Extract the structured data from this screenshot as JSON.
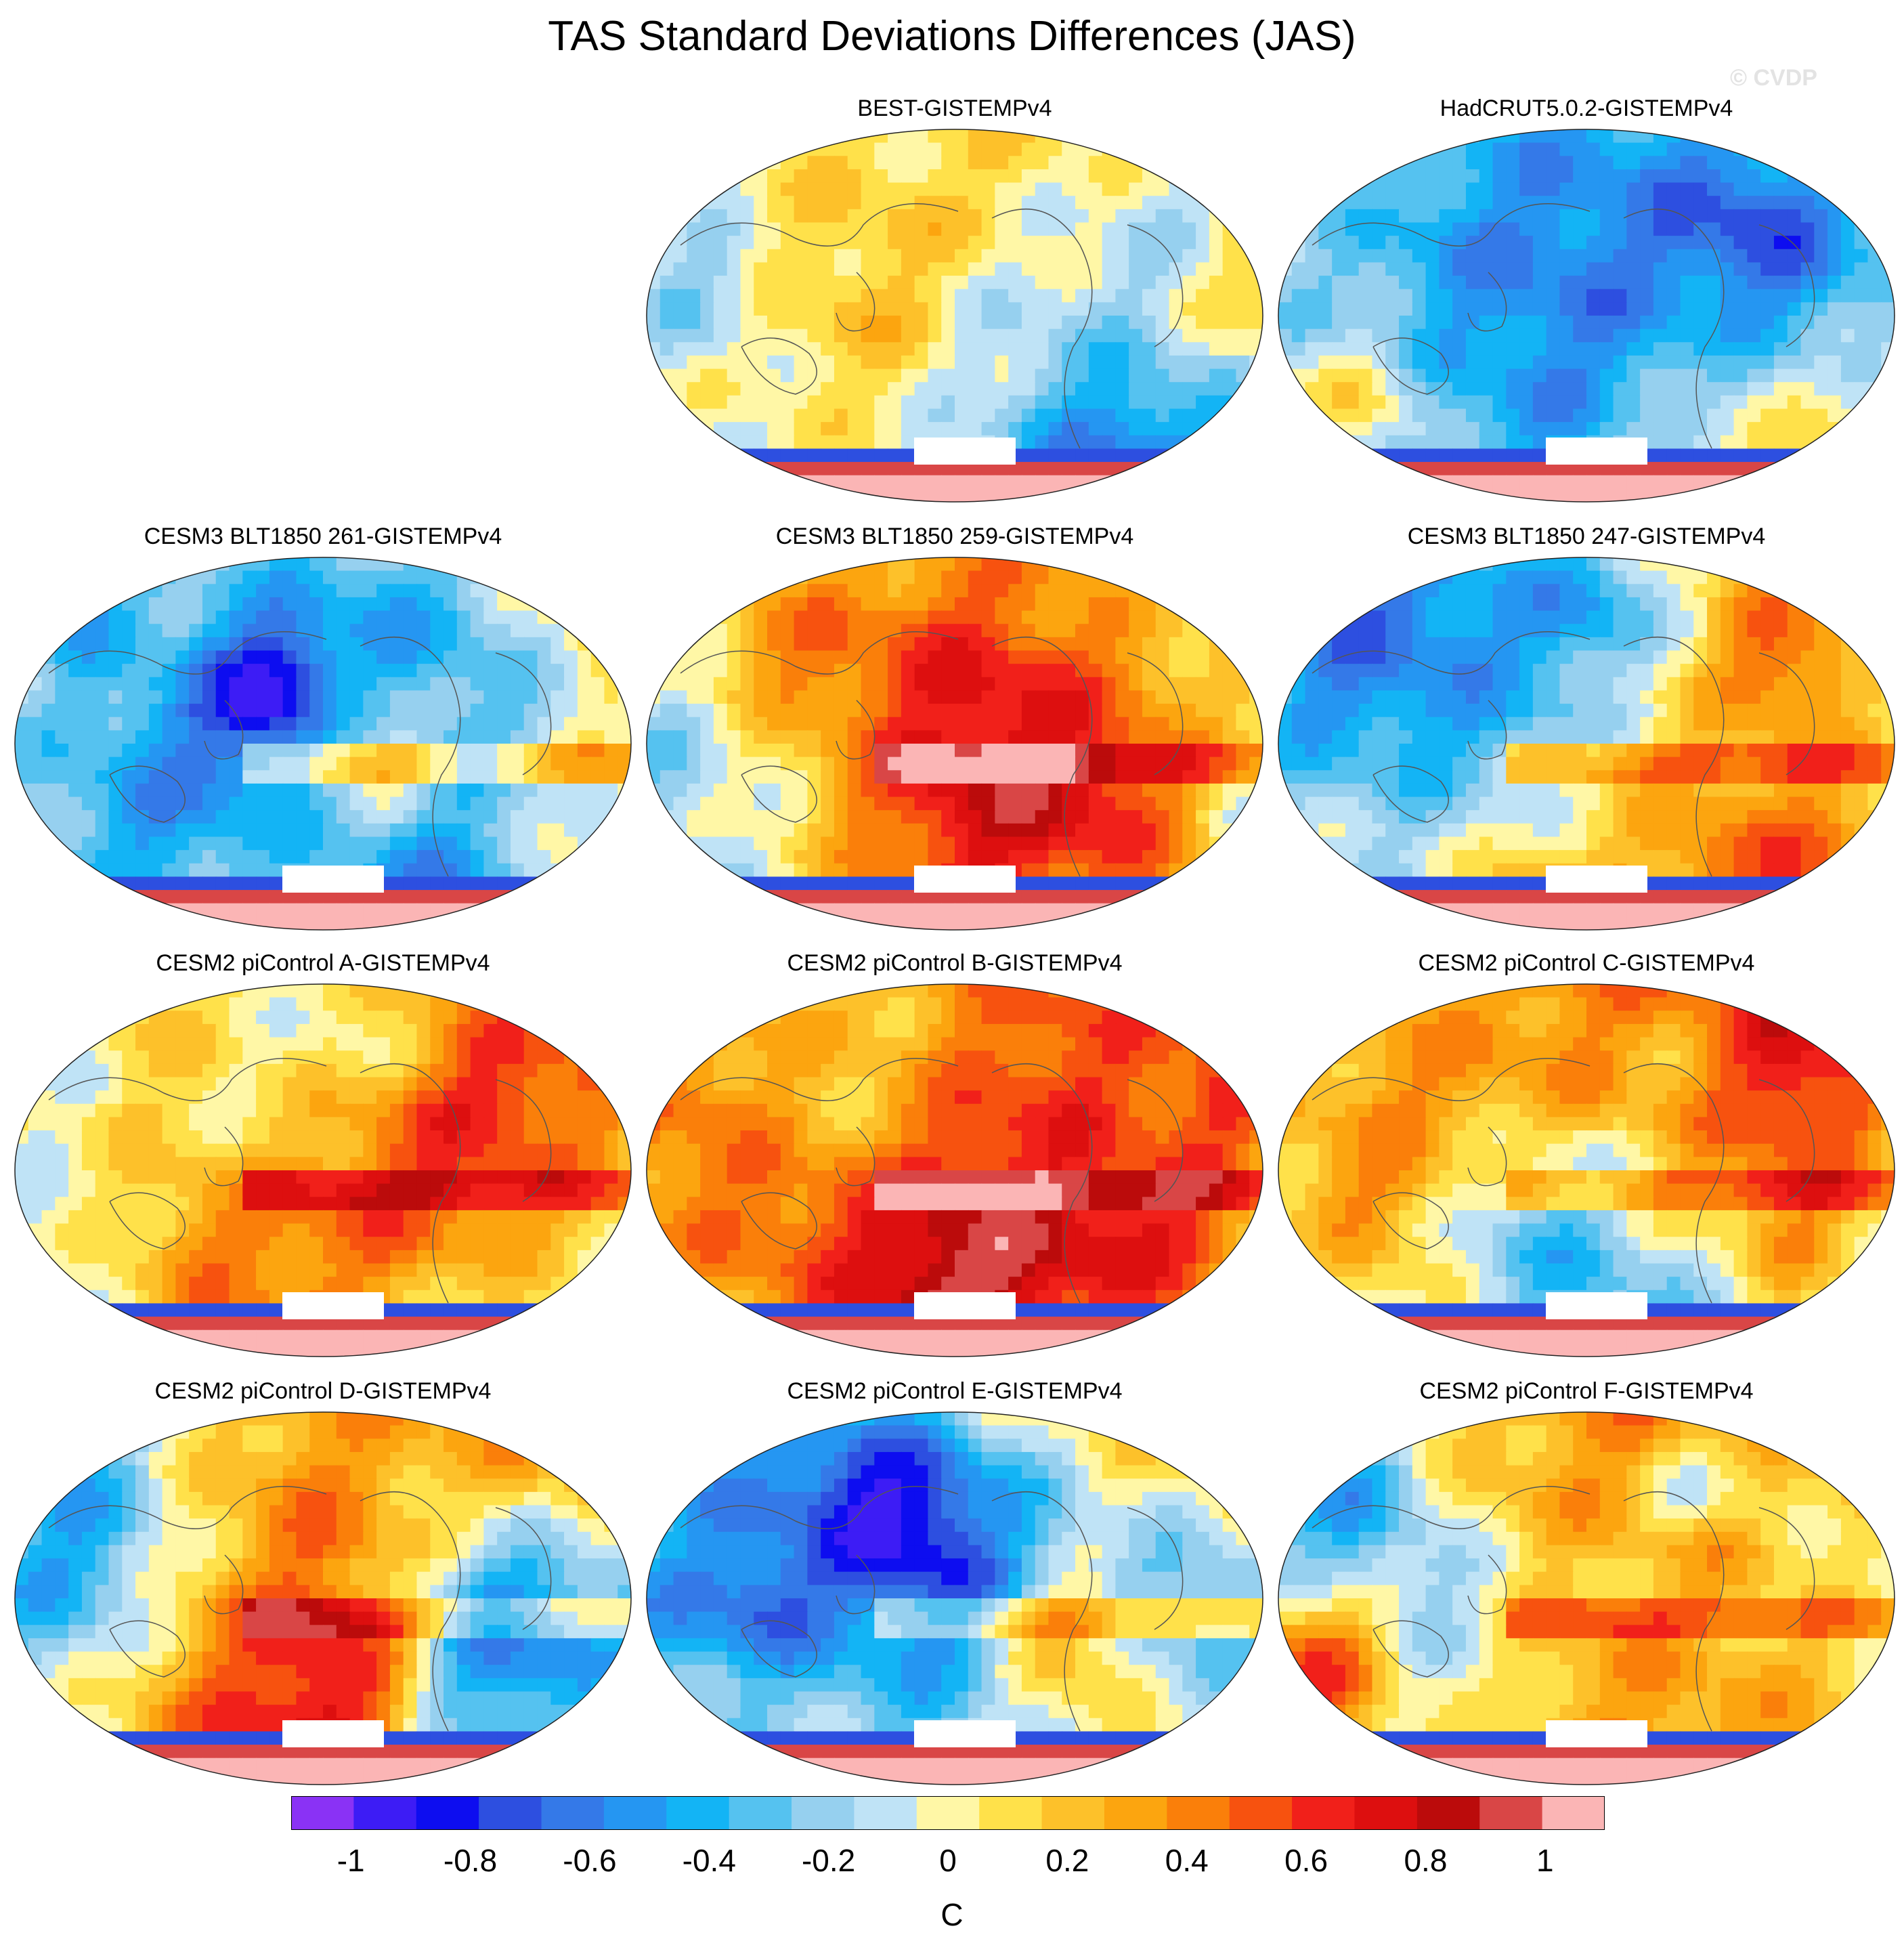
{
  "chart_data": {
    "type": "heatmap",
    "title": "TAS Standard Deviations Differences (JAS)",
    "watermark": "© CVDP",
    "projection": "Robinson, Pacific-centered global maps",
    "units": "C",
    "colorbar": {
      "min": -1.1,
      "max": 1.1,
      "tick_values": [
        -1,
        -0.8,
        -0.6,
        -0.4,
        -0.2,
        0,
        0.2,
        0.4,
        0.6,
        0.8,
        1
      ],
      "tick_labels": [
        "-1",
        "-0.8",
        "-0.6",
        "-0.4",
        "-0.2",
        "0",
        "0.2",
        "0.4",
        "0.6",
        "0.8",
        "1"
      ],
      "colors": [
        "#8a32f5",
        "#3d1cf5",
        "#0d0df0",
        "#2d4fe0",
        "#3479e8",
        "#2596f2",
        "#13b4f5",
        "#55c2f0",
        "#96d0ef",
        "#bfe3f6",
        "#fff7a6",
        "#ffe14a",
        "#fdc12a",
        "#fca50f",
        "#fa7f0a",
        "#f7520f",
        "#f1201a",
        "#dd0f0f",
        "#bb0b0b",
        "#d94646",
        "#fbb5b5"
      ]
    },
    "panels": [
      {
        "title": "BEST-GISTEMPv4",
        "pattern": "obs1"
      },
      {
        "title": "HadCRUT5.0.2-GISTEMPv4",
        "pattern": "obs2"
      },
      {
        "title": "CESM3 BLT1850 261-GISTEMPv4",
        "pattern": "model"
      },
      {
        "title": "CESM3 BLT1850 259-GISTEMPv4",
        "pattern": "model"
      },
      {
        "title": "CESM3 BLT1850 247-GISTEMPv4",
        "pattern": "model"
      },
      {
        "title": "CESM2 piControl A-GISTEMPv4",
        "pattern": "model"
      },
      {
        "title": "CESM2 piControl B-GISTEMPv4",
        "pattern": "model"
      },
      {
        "title": "CESM2 piControl C-GISTEMPv4",
        "pattern": "model"
      },
      {
        "title": "CESM2 piControl D-GISTEMPv4",
        "pattern": "model"
      },
      {
        "title": "CESM2 piControl E-GISTEMPv4",
        "pattern": "model"
      },
      {
        "title": "CESM2 piControl F-GISTEMPv4",
        "pattern": "model"
      }
    ]
  }
}
